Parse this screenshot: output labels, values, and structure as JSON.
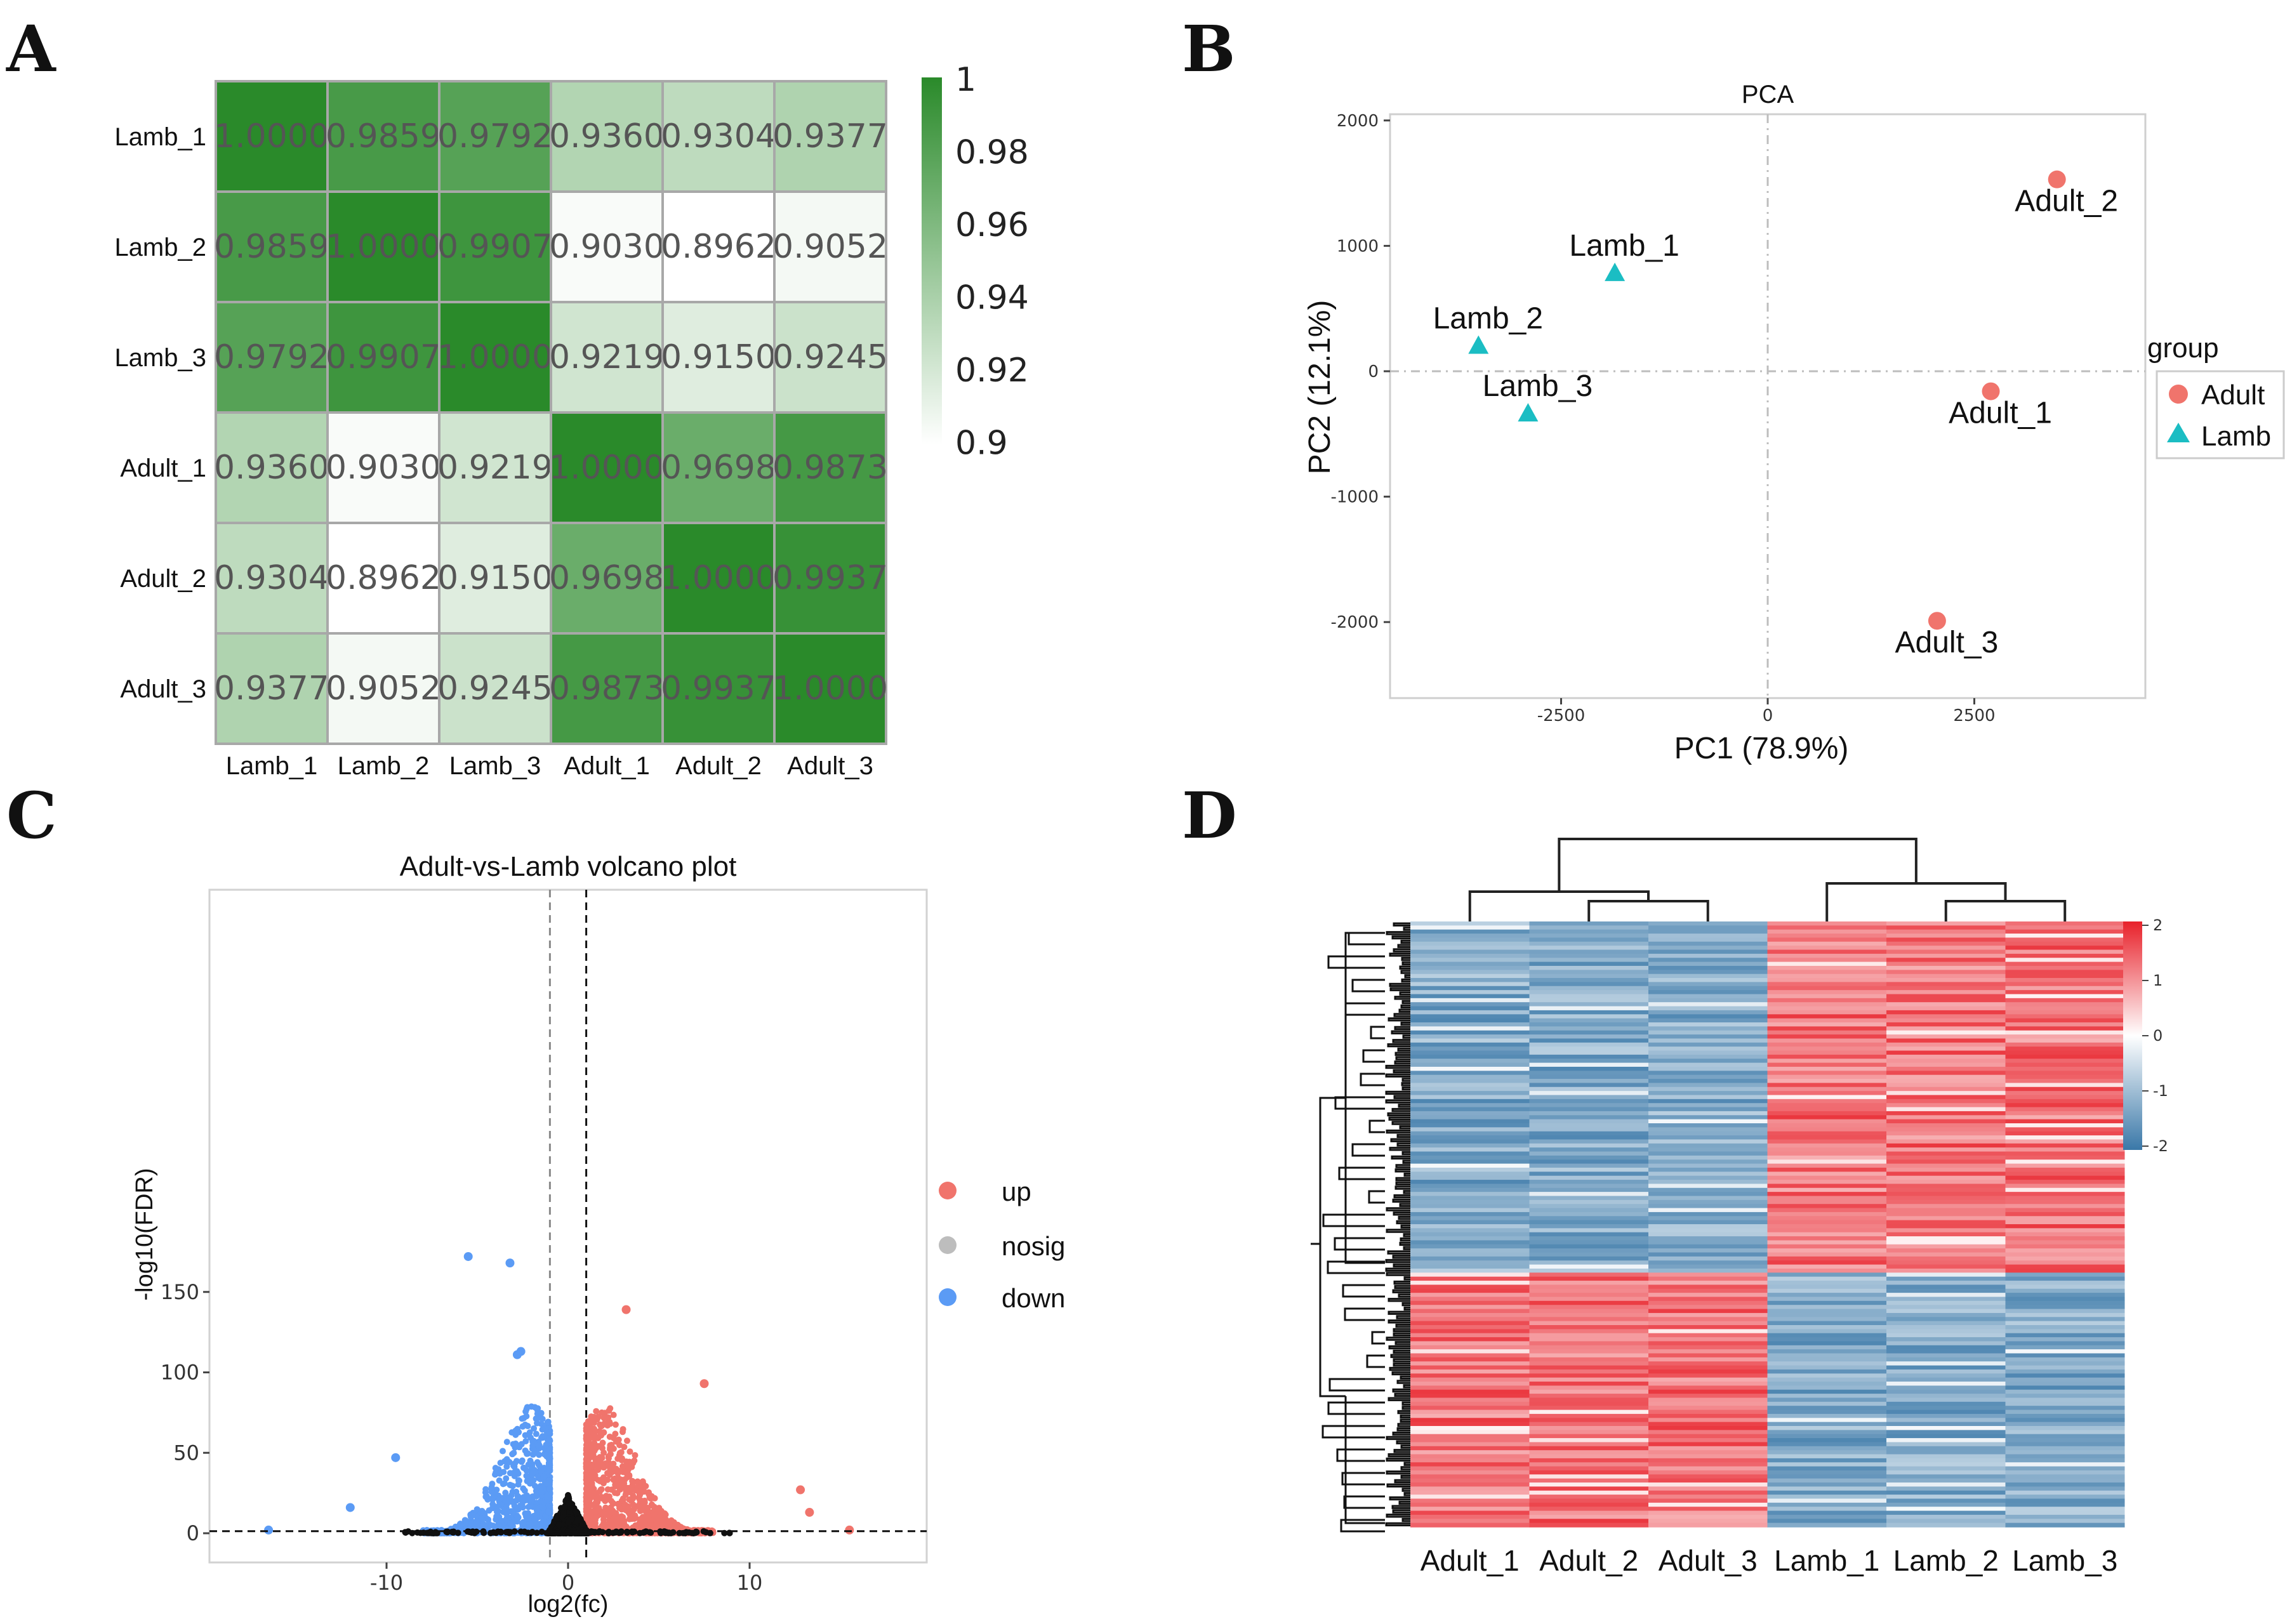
{
  "panels": {
    "a": {
      "label": "A",
      "row_labels": [
        "Lamb_1",
        "Lamb_2",
        "Lamb_3",
        "Adult_1",
        "Adult_2",
        "Adult_3"
      ],
      "col_labels": [
        "Lamb_1",
        "Lamb_2",
        "Lamb_3",
        "Adult_1",
        "Adult_2",
        "Adult_3"
      ],
      "matrix": [
        [
          "1.0000",
          "0.9859",
          "0.9792",
          "0.9360",
          "0.9304",
          "0.9377"
        ],
        [
          "0.9859",
          "1.0000",
          "0.9907",
          "0.9030",
          "0.8962",
          "0.9052"
        ],
        [
          "0.9792",
          "0.9907",
          "1.0000",
          "0.9219",
          "0.9150",
          "0.9245"
        ],
        [
          "0.9360",
          "0.9030",
          "0.9219",
          "1.0000",
          "0.9698",
          "0.9873"
        ],
        [
          "0.9304",
          "0.8962",
          "0.9150",
          "0.9698",
          "1.0000",
          "0.9937"
        ],
        [
          "0.9377",
          "0.9052",
          "0.9245",
          "0.9873",
          "0.9937",
          "1.0000"
        ]
      ],
      "legend_ticks": [
        "1",
        "0.98",
        "0.96",
        "0.94",
        "0.92",
        "0.9"
      ],
      "color_low": "#ffffff",
      "color_high": "#2a8a2a"
    },
    "b": {
      "label": "B",
      "title": "PCA",
      "xlabel": "PC1 (78.9%)",
      "ylabel": "PC2 (12.1%)",
      "x_ticks": [
        "-2500",
        "0",
        "2500"
      ],
      "y_ticks": [
        "2000",
        "1000",
        "0",
        "-1000",
        "-2000"
      ],
      "legend_title": "group",
      "groups": [
        {
          "name": "Adult",
          "color": "#f0746c",
          "shape": "circle"
        },
        {
          "name": "Lamb",
          "color": "#1bbdc3",
          "shape": "triangle"
        }
      ],
      "points": [
        {
          "label": "Lamb_1",
          "group": "Lamb",
          "x": -1850,
          "y": 780
        },
        {
          "label": "Lamb_2",
          "group": "Lamb",
          "x": -3500,
          "y": 200
        },
        {
          "label": "Lamb_3",
          "group": "Lamb",
          "x": -2900,
          "y": -340
        },
        {
          "label": "Adult_1",
          "group": "Adult",
          "x": 2700,
          "y": -160
        },
        {
          "label": "Adult_2",
          "group": "Adult",
          "x": 3500,
          "y": 1530
        },
        {
          "label": "Adult_3",
          "group": "Adult",
          "x": 2050,
          "y": -1990
        }
      ]
    },
    "c": {
      "label": "C",
      "title": "Adult-vs-Lamb volcano plot",
      "xlabel": "log2(fc)",
      "ylabel": "-log10(FDR)",
      "x_ticks": [
        "-10",
        "0",
        "10"
      ],
      "y_ticks": [
        "150",
        "100",
        "50",
        "0"
      ],
      "legend": [
        {
          "name": "up",
          "color": "#f0746c"
        },
        {
          "name": "nosig",
          "color": "#bdbdbd"
        },
        {
          "name": "down",
          "color": "#5b9bf5"
        }
      ],
      "highlight_points": [
        {
          "x": -5.5,
          "y": 172,
          "group": "down"
        },
        {
          "x": -3.2,
          "y": 168,
          "group": "down"
        },
        {
          "x": -2.6,
          "y": 113,
          "group": "down"
        },
        {
          "x": -2.8,
          "y": 111,
          "group": "down"
        },
        {
          "x": -9.5,
          "y": 47,
          "group": "down"
        },
        {
          "x": -12,
          "y": 16,
          "group": "down"
        },
        {
          "x": -16.5,
          "y": 2,
          "group": "down"
        },
        {
          "x": 3.2,
          "y": 139,
          "group": "up"
        },
        {
          "x": 7.5,
          "y": 93,
          "group": "up"
        },
        {
          "x": 12.8,
          "y": 27,
          "group": "up"
        },
        {
          "x": 13.3,
          "y": 13,
          "group": "up"
        },
        {
          "x": 15.5,
          "y": 2,
          "group": "up"
        }
      ]
    },
    "d": {
      "label": "D",
      "col_labels": [
        "Adult_1",
        "Adult_2",
        "Adult_3",
        "Lamb_1",
        "Lamb_2",
        "Lamb_3"
      ],
      "legend_ticks": [
        "2",
        "1",
        "0",
        "-1",
        "-2"
      ],
      "color_high": "#e8212a",
      "color_mid": "#ffffff",
      "color_low": "#3a78a8"
    }
  }
}
